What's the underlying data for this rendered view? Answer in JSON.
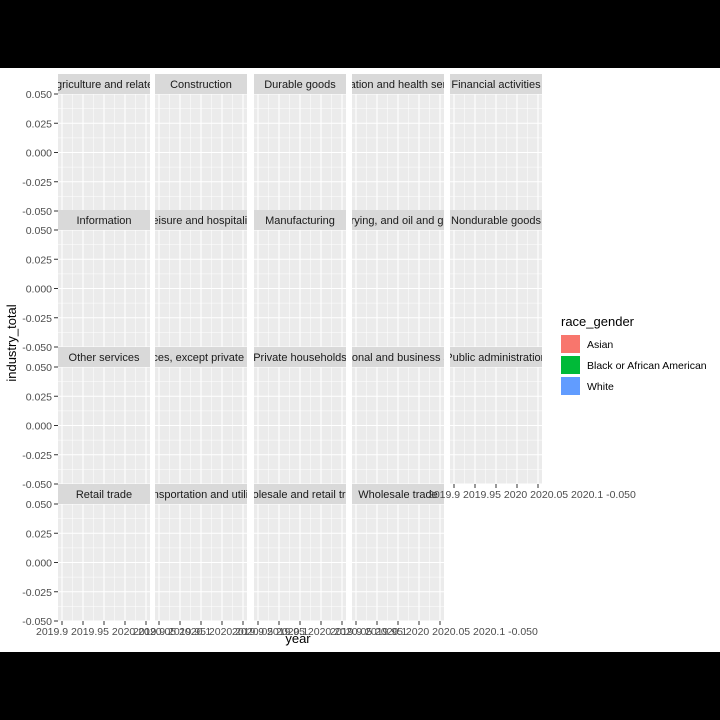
{
  "chart_data": {
    "type": "line",
    "facet_by": "industry",
    "facets": [
      "Agriculture and related",
      "Construction",
      "Durable goods",
      "Education and health services",
      "Financial activities",
      "Information",
      "Leisure and hospitality",
      "Manufacturing",
      "Mining, quarrying, and oil and gas extraction",
      "Nondurable goods",
      "Other services",
      "Other services, except private households",
      "Private households",
      "Professional and business services",
      "Public administration",
      "Retail trade",
      "Transportation and utilities",
      "Wholesale and retail trade",
      "Wholesale trade"
    ],
    "xlabel": "year",
    "ylabel": "industry_total",
    "y_ticks": [
      "0.050",
      "0.025",
      "0.000",
      "-0.025",
      "-0.050"
    ],
    "y_tick_values": [
      0.05,
      0.025,
      0,
      -0.025,
      -0.05
    ],
    "ylim": [
      -0.05,
      0.05
    ],
    "x_tick_label_strip": "2019.9 2019.95 2020 2020.05 2020.1 -0.050",
    "x_tick_label_strips": [
      "2019.9 2019.95 2020 2020.05 2020.1",
      "2019.9 2019.95 2020 2020.05 2020.1",
      "2019.9 2019.95 2020 2020.05 2020.1",
      "2019.9 2019.95 2020 2020.05 2020.1 -0.050",
      "2019.9 2019.95 2020 2020.05 2020.1 -0.050"
    ],
    "series": [
      {
        "name": "Asian",
        "color": "#F8766D",
        "values": []
      },
      {
        "name": "Black or African American",
        "color": "#00BA38",
        "values": []
      },
      {
        "name": "White",
        "color": "#619CFF",
        "values": []
      }
    ],
    "legend": {
      "title": "race_gender",
      "placement": "right"
    },
    "grid": true
  }
}
